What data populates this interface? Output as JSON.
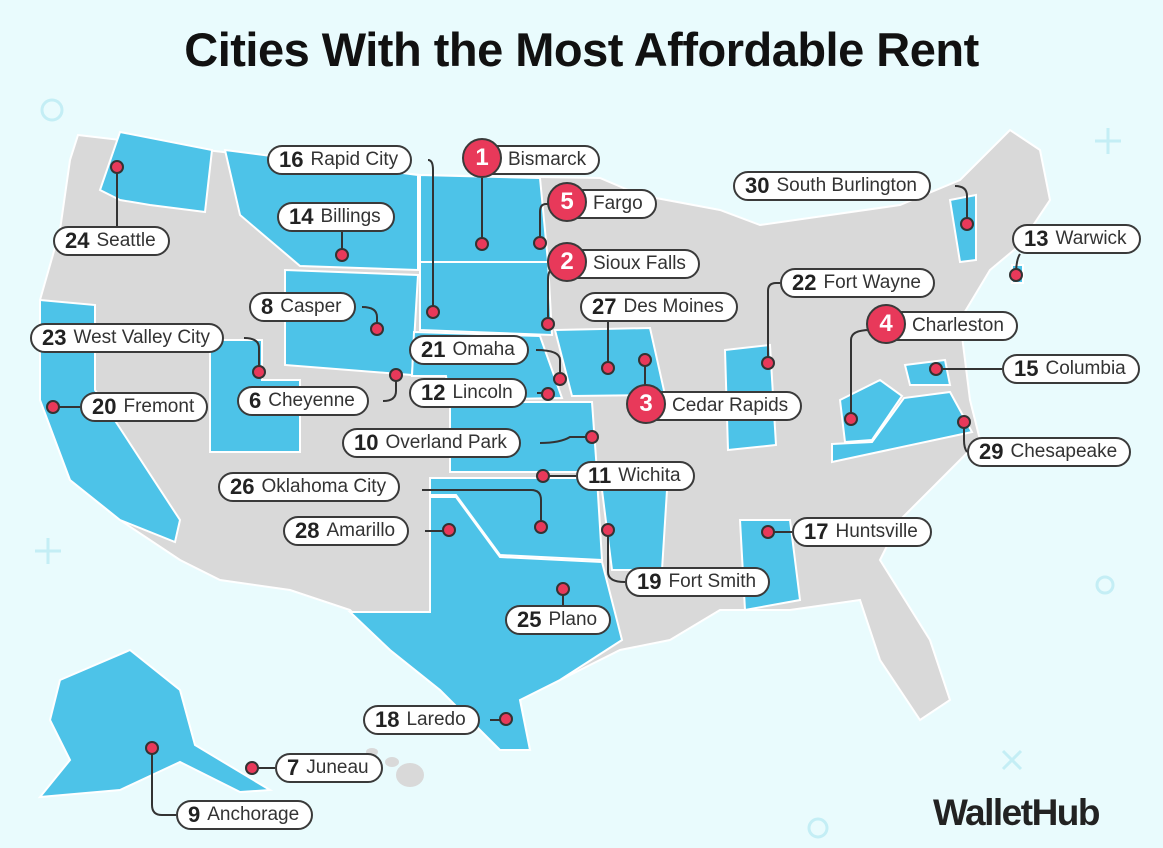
{
  "title": "Cities With the Most Affordable Rent",
  "brand": "WalletHub",
  "colors": {
    "highlight_state": "#4dc3e8",
    "other_state": "#d9d9d9",
    "marker": "#e8395a",
    "background": "#e9fbfd"
  },
  "cities": [
    {
      "rank": "1",
      "name": "Bismarck"
    },
    {
      "rank": "5",
      "name": "Fargo"
    },
    {
      "rank": "2",
      "name": "Sioux Falls"
    },
    {
      "rank": "16",
      "name": "Rapid City"
    },
    {
      "rank": "14",
      "name": "Billings"
    },
    {
      "rank": "30",
      "name": "South Burlington"
    },
    {
      "rank": "13",
      "name": "Warwick"
    },
    {
      "rank": "24",
      "name": "Seattle"
    },
    {
      "rank": "8",
      "name": "Casper"
    },
    {
      "rank": "27",
      "name": "Des Moines"
    },
    {
      "rank": "22",
      "name": "Fort Wayne"
    },
    {
      "rank": "4",
      "name": "Charleston"
    },
    {
      "rank": "23",
      "name": "West Valley City"
    },
    {
      "rank": "21",
      "name": "Omaha"
    },
    {
      "rank": "15",
      "name": "Columbia"
    },
    {
      "rank": "3",
      "name": "Cedar Rapids"
    },
    {
      "rank": "12",
      "name": "Lincoln"
    },
    {
      "rank": "6",
      "name": "Cheyenne"
    },
    {
      "rank": "20",
      "name": "Fremont"
    },
    {
      "rank": "10",
      "name": "Overland Park"
    },
    {
      "rank": "29",
      "name": "Chesapeake"
    },
    {
      "rank": "11",
      "name": "Wichita"
    },
    {
      "rank": "26",
      "name": "Oklahoma City"
    },
    {
      "rank": "28",
      "name": "Amarillo"
    },
    {
      "rank": "17",
      "name": "Huntsville"
    },
    {
      "rank": "19",
      "name": "Fort Smith"
    },
    {
      "rank": "25",
      "name": "Plano"
    },
    {
      "rank": "18",
      "name": "Laredo"
    },
    {
      "rank": "7",
      "name": "Juneau"
    },
    {
      "rank": "9",
      "name": "Anchorage"
    }
  ]
}
